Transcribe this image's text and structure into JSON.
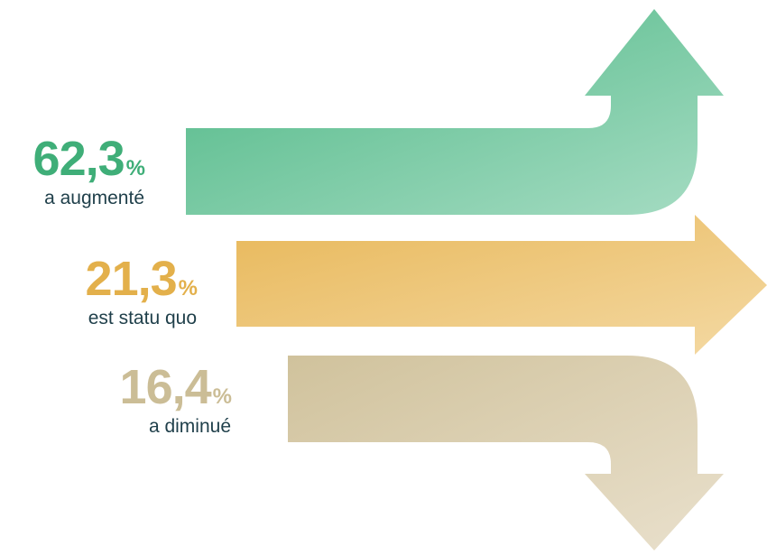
{
  "colors": {
    "up": "#4cb784",
    "up_light": "#a6dcc3",
    "flat": "#e8b85a",
    "flat_light": "#f4d9a3",
    "down": "#d0c29c",
    "down_light": "#e9e0cc"
  },
  "chart_data": {
    "type": "infographic-arrows",
    "unit": "%",
    "items": [
      {
        "value_text": "62,3",
        "percent_sign": "%",
        "label": "a augmenté",
        "value": 62.3,
        "direction": "up"
      },
      {
        "value_text": "21,3",
        "percent_sign": "%",
        "label": "est statu quo",
        "value": 21.3,
        "direction": "right"
      },
      {
        "value_text": "16,4",
        "percent_sign": "%",
        "label": "a diminué",
        "value": 16.4,
        "direction": "down"
      }
    ]
  }
}
